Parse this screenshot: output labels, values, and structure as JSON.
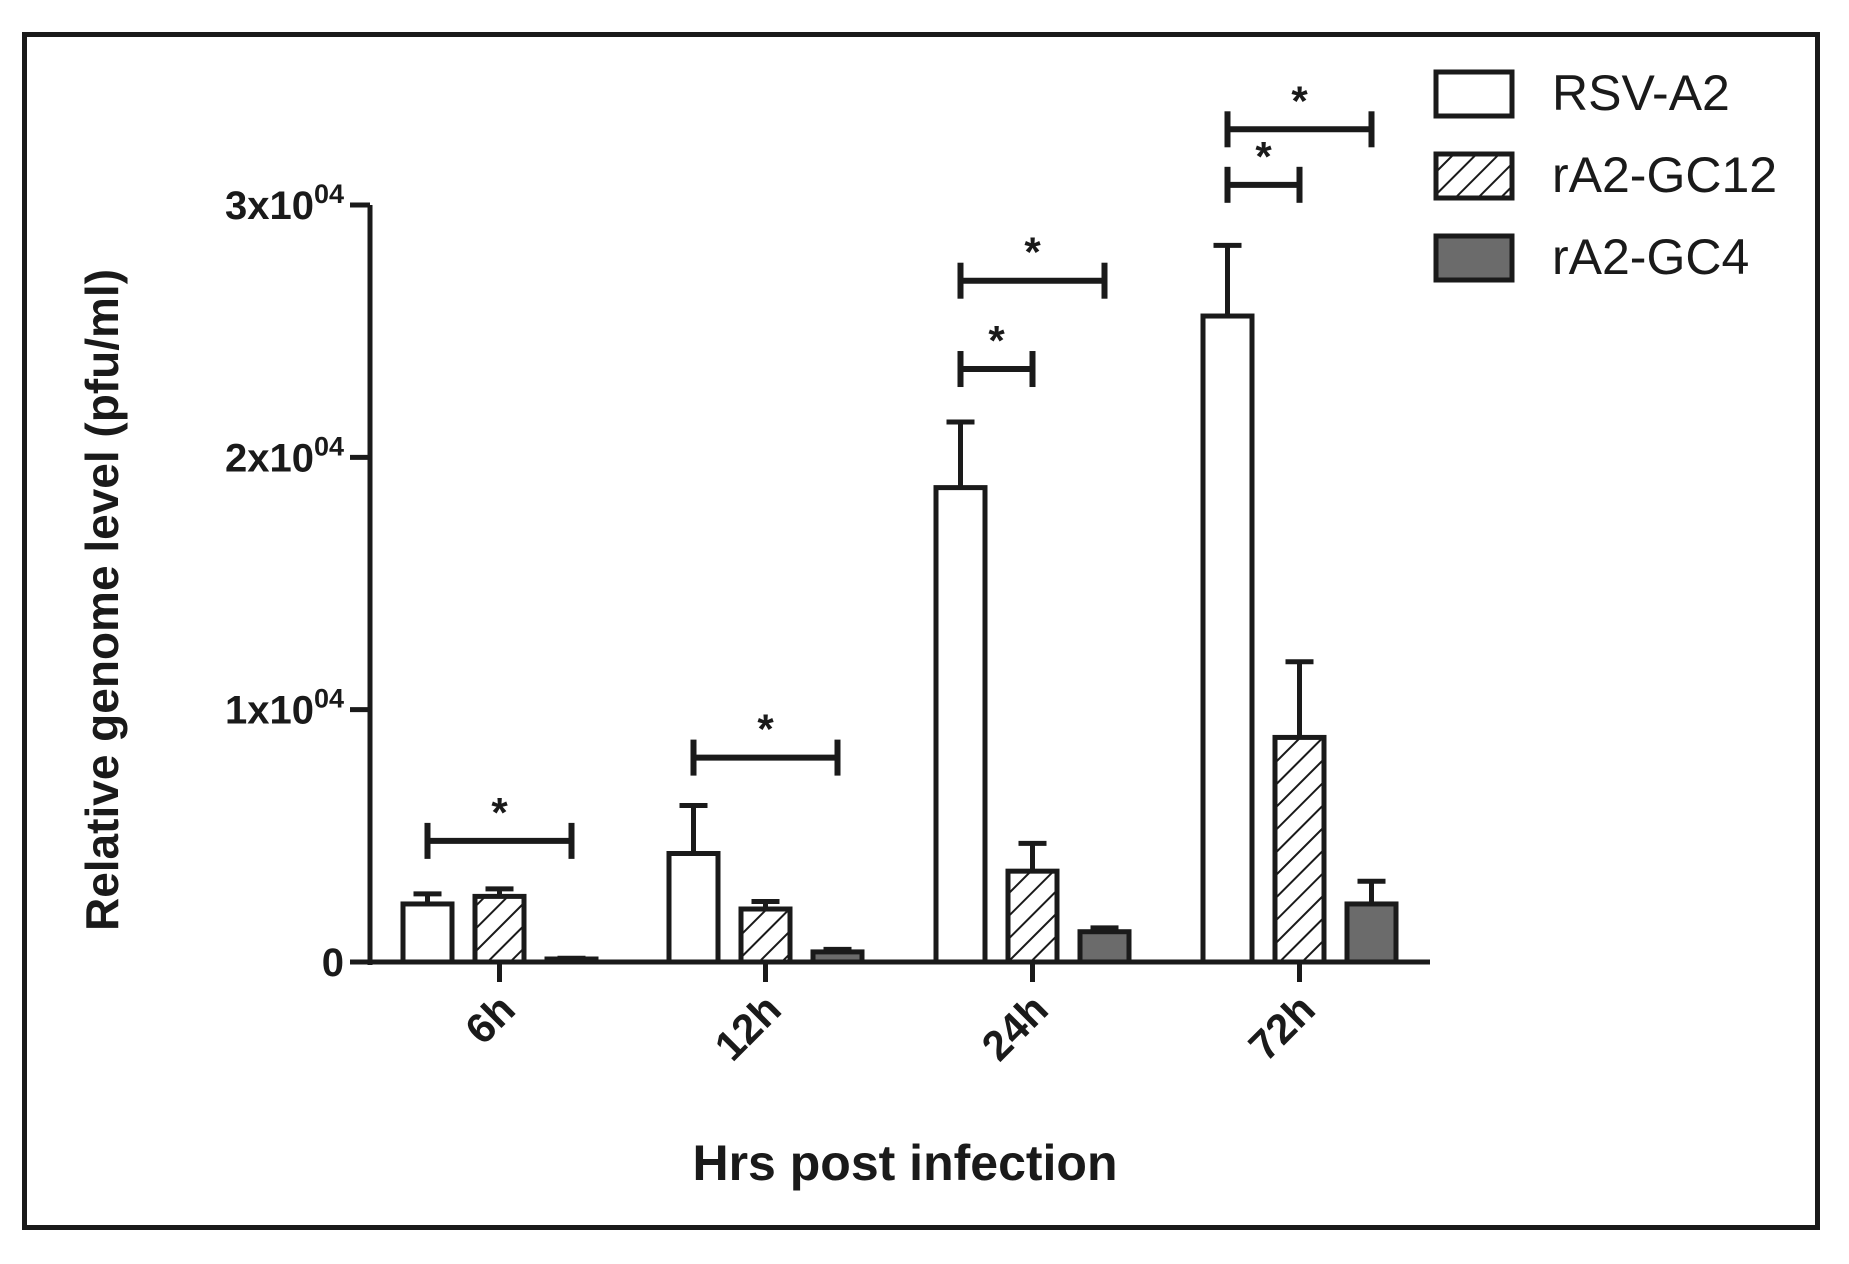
{
  "chart_data": {
    "type": "bar",
    "categories": [
      "6h",
      "12h",
      "24h",
      "72h"
    ],
    "xlabel": "Hrs post infection",
    "ylabel": "Relative genome level (pfu/ml)",
    "ylim": [
      0,
      30000
    ],
    "yticks": [
      {
        "value": 0,
        "base": "0",
        "exp": ""
      },
      {
        "value": 10000,
        "base": "1x10",
        "exp": "04"
      },
      {
        "value": 20000,
        "base": "2x10",
        "exp": "04"
      },
      {
        "value": 30000,
        "base": "3x10",
        "exp": "04"
      }
    ],
    "grid": false,
    "legend_position": "top-right",
    "series": [
      {
        "name": "RSV-A2",
        "pattern": "white",
        "values": [
          2300,
          4300,
          18800,
          25600
        ],
        "errors": [
          400,
          1900,
          2600,
          2800
        ]
      },
      {
        "name": "rA2-GC12",
        "pattern": "hatched",
        "values": [
          2600,
          2100,
          3600,
          8900
        ],
        "errors": [
          300,
          300,
          1100,
          3000
        ]
      },
      {
        "name": "rA2-GC4",
        "pattern": "gray",
        "values": [
          100,
          400,
          1200,
          2300
        ],
        "errors": [
          50,
          100,
          150,
          900
        ]
      }
    ],
    "significance": [
      {
        "category": 0,
        "from_series": 0,
        "to_series": 2,
        "y": 4800,
        "label": "*"
      },
      {
        "category": 1,
        "from_series": 0,
        "to_series": 2,
        "y": 8100,
        "label": "*"
      },
      {
        "category": 2,
        "from_series": 0,
        "to_series": 1,
        "y": 23500,
        "label": "*"
      },
      {
        "category": 2,
        "from_series": 0,
        "to_series": 2,
        "y": 27000,
        "label": "*"
      },
      {
        "category": 3,
        "from_series": 0,
        "to_series": 1,
        "y": 30800,
        "label": "*"
      },
      {
        "category": 3,
        "from_series": 0,
        "to_series": 2,
        "y": 33000,
        "label": "*"
      }
    ],
    "colors": {
      "stroke": "#1a1a1a",
      "white_fill": "#ffffff",
      "gray_fill": "#6b6b6b"
    }
  }
}
